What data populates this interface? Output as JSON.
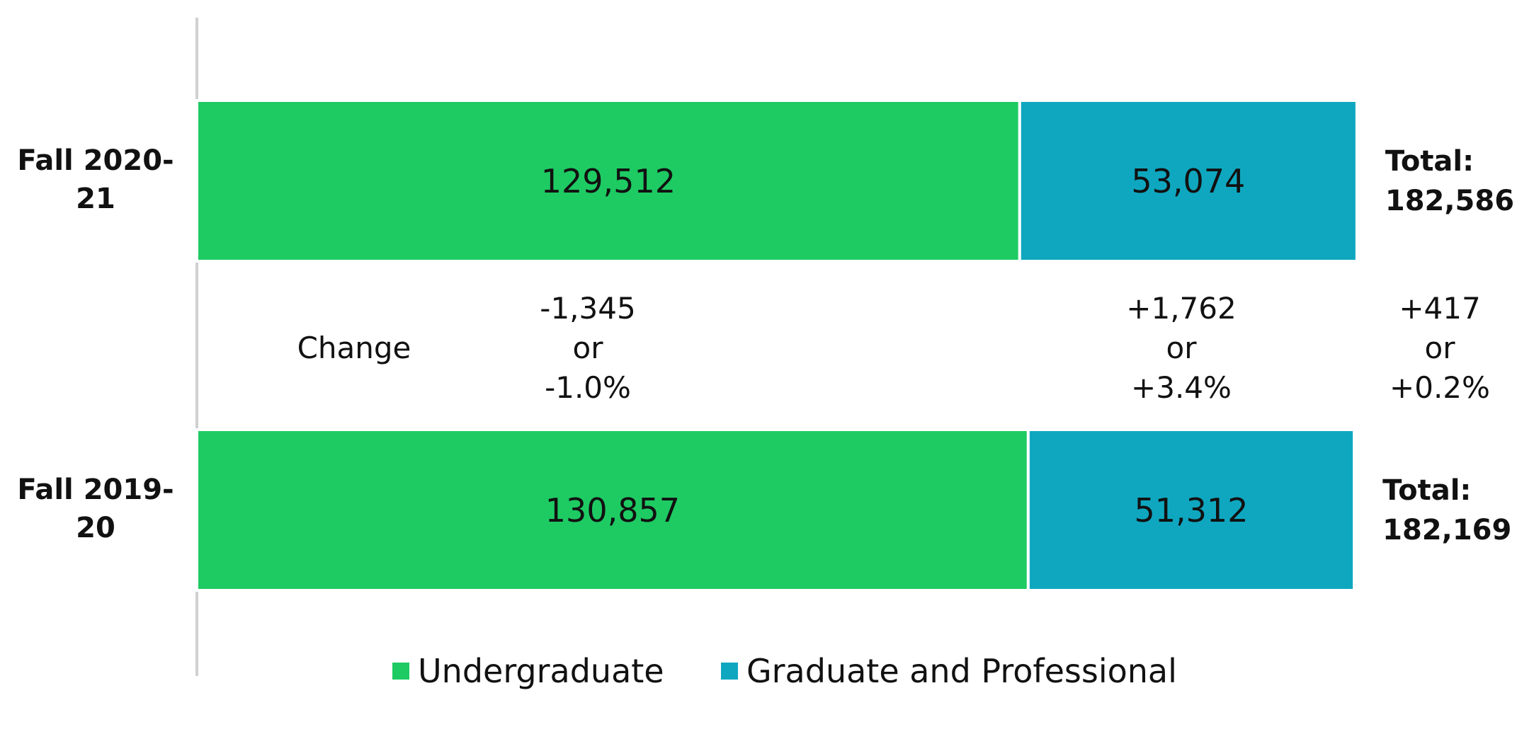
{
  "chart_data": {
    "type": "stacked_barh",
    "categories": [
      "Fall 2020-21",
      "Fall 2019-20"
    ],
    "series": [
      {
        "name": "Undergraduate",
        "color": "#1ecb63",
        "values": [
          129512,
          130857
        ],
        "value_labels": [
          "129,512",
          "130,857"
        ]
      },
      {
        "name": "Graduate and Professional",
        "color": "#0fa7c0",
        "values": [
          53074,
          51312
        ],
        "value_labels": [
          "53,074",
          "51,312"
        ]
      }
    ],
    "xlim": [
      0,
      182600
    ],
    "totals": [
      [
        "Total:",
        "182,586"
      ],
      [
        "Total:",
        "182,169"
      ]
    ],
    "change_label": "Change",
    "changes": [
      [
        "-1,345",
        "or",
        "-1.0%"
      ],
      [
        "+1,762",
        "or",
        "+3.4%"
      ],
      [
        "+417",
        "or",
        "+0.2%"
      ]
    ],
    "legend": "bottom"
  }
}
